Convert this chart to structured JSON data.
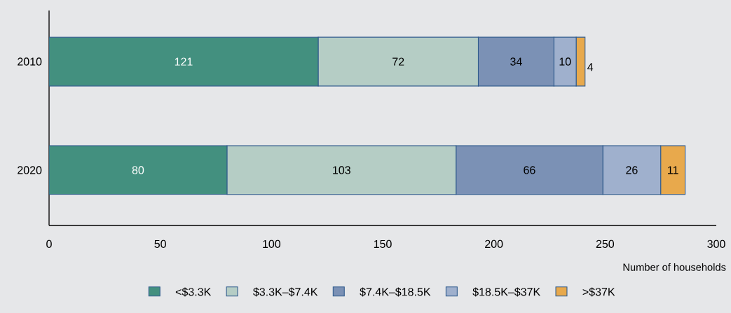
{
  "chart_data": {
    "type": "bar",
    "orientation": "horizontal",
    "stacked": true,
    "categories": [
      "2010",
      "2020"
    ],
    "series": [
      {
        "name": "<$3.3K",
        "color": "#43907f",
        "values": [
          121,
          80
        ]
      },
      {
        "name": "$3.3K–$7.4K",
        "color": "#b5cdc5",
        "values": [
          72,
          103
        ]
      },
      {
        "name": "$7.4K–$18.5K",
        "color": "#7b91b5",
        "values": [
          34,
          66
        ]
      },
      {
        "name": "$18.5K–$37K",
        "color": "#9fb0cd",
        "values": [
          10,
          26
        ]
      },
      {
        "name": ">$37K",
        "color": "#e8a94c",
        "values": [
          4,
          11
        ]
      }
    ],
    "xlim": [
      0,
      300
    ],
    "xticks": [
      0,
      50,
      100,
      150,
      200,
      250,
      300
    ],
    "xlabel": "Number of households",
    "data_labels": true,
    "legend": "bottom",
    "grid": false
  }
}
